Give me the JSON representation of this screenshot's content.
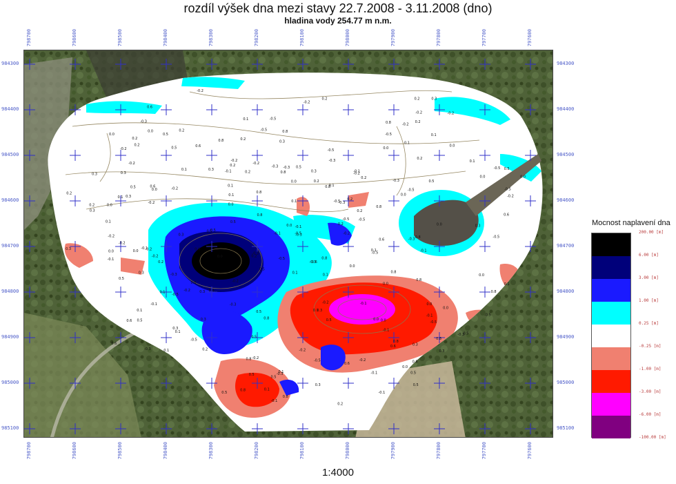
{
  "title": "rozdíl výšek dna mezi stavy 22.7.2008 - 3.11.2008 (dno)",
  "subtitle": "hladina vody 254.77 m n.m.",
  "scale": "1:4000",
  "grid": {
    "x_labels": [
      "798700",
      "798600",
      "798500",
      "798400",
      "798300",
      "798200",
      "798100",
      "798000",
      "797900",
      "797800",
      "797700",
      "797600"
    ],
    "y_labels": [
      "984300",
      "984400",
      "984500",
      "984600",
      "984700",
      "984800",
      "984900",
      "985000",
      "985100"
    ]
  },
  "legend": {
    "title": "Mocnost naplavení dna",
    "classes": [
      {
        "label": "200.00 [m]",
        "color": "#000000"
      },
      {
        "label": "6.00 [m]",
        "color": "#00007a"
      },
      {
        "label": "3.00 [m]",
        "color": "#1a1aff"
      },
      {
        "label": "1.00 [m]",
        "color": "#00ffff"
      },
      {
        "label": "0.25 [m]",
        "color": "#ffffff"
      },
      {
        "label": "-0.25 [m]",
        "color": "#f08070"
      },
      {
        "label": "-1.00 [m]",
        "color": "#ff1a00"
      },
      {
        "label": "-3.00 [m]",
        "color": "#ff00ff"
      },
      {
        "label": "-6.00 [m]",
        "color": "#800080"
      },
      {
        "label": "-100.00 [m]",
        "color": ""
      }
    ]
  },
  "spot_values": [
    "0.0",
    "0.1",
    "-0.1",
    "0.2",
    "-0.2",
    "0.3",
    "-0.3",
    "0.5",
    "0.8",
    "-0.5",
    "0.6"
  ]
}
